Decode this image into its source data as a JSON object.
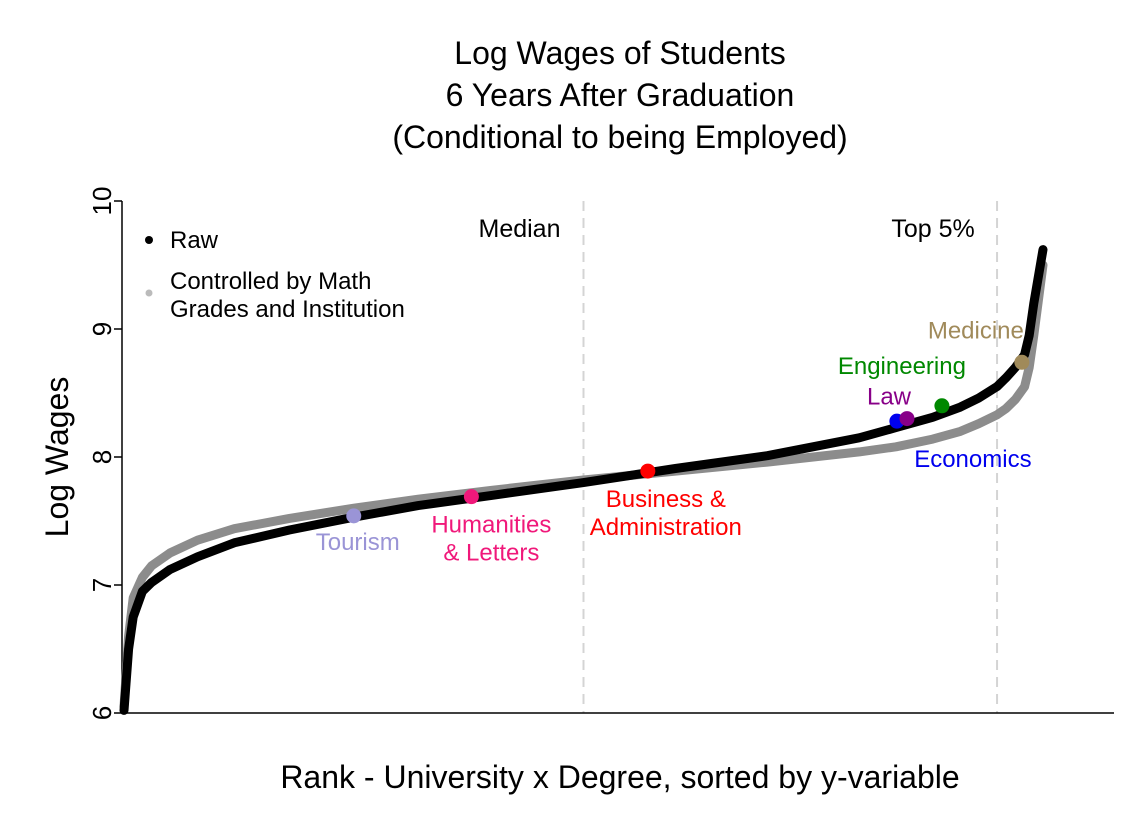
{
  "chart_data": {
    "type": "scatter",
    "title_lines": [
      "Log Wages of Students",
      "6 Years After Graduation",
      "(Conditional to being Employed)"
    ],
    "xlabel": "Rank - University x Degree, sorted by y-variable",
    "ylabel": "Log Wages",
    "ylim": [
      6,
      10
    ],
    "yticks": [
      "6",
      "7",
      "8",
      "9",
      "10"
    ],
    "xlim": [
      0,
      1
    ],
    "grid": false,
    "legend": {
      "placement": "top-left",
      "entries": [
        {
          "label_lines": [
            "Raw"
          ],
          "color": "#000000"
        },
        {
          "label_lines": [
            "Controlled by Math",
            "Grades and Institution"
          ],
          "color": "#bbbbbb"
        }
      ]
    },
    "reference_lines": [
      {
        "label": "Median",
        "x": 0.5
      },
      {
        "label": "Top 5%",
        "x": 0.95
      }
    ],
    "series": [
      {
        "color": "#000000",
        "x": [
          0.0,
          0.005,
          0.01,
          0.02,
          0.03,
          0.05,
          0.08,
          0.12,
          0.18,
          0.25,
          0.32,
          0.4,
          0.5,
          0.6,
          0.7,
          0.8,
          0.84,
          0.88,
          0.91,
          0.93,
          0.95,
          0.96,
          0.97,
          0.98,
          0.985,
          0.99,
          1.0
        ],
        "y": [
          6.02,
          6.5,
          6.75,
          6.95,
          7.02,
          7.12,
          7.22,
          7.33,
          7.43,
          7.53,
          7.62,
          7.7,
          7.8,
          7.91,
          8.01,
          8.15,
          8.23,
          8.31,
          8.39,
          8.46,
          8.55,
          8.62,
          8.7,
          8.8,
          8.95,
          9.2,
          9.62
        ]
      },
      {
        "color": "#8c8c8c",
        "x": [
          0.0,
          0.005,
          0.01,
          0.02,
          0.03,
          0.05,
          0.08,
          0.12,
          0.18,
          0.25,
          0.32,
          0.4,
          0.5,
          0.6,
          0.7,
          0.8,
          0.84,
          0.88,
          0.91,
          0.93,
          0.95,
          0.96,
          0.97,
          0.98,
          0.985,
          0.99,
          1.0
        ],
        "y": [
          6.05,
          6.6,
          6.9,
          7.06,
          7.15,
          7.25,
          7.35,
          7.44,
          7.52,
          7.6,
          7.67,
          7.74,
          7.82,
          7.89,
          7.96,
          8.04,
          8.08,
          8.14,
          8.2,
          8.26,
          8.33,
          8.38,
          8.45,
          8.55,
          8.7,
          8.95,
          9.5
        ]
      }
    ],
    "points": [
      {
        "label_lines": [
          "Tourism"
        ],
        "x": 0.25,
        "y": 7.54,
        "color": "#9a94d6"
      },
      {
        "label_lines": [
          "Humanities",
          "& Letters"
        ],
        "x": 0.378,
        "y": 7.69,
        "color": "#f0187a"
      },
      {
        "label_lines": [
          "Business &",
          "Administration"
        ],
        "x": 0.57,
        "y": 7.89,
        "color": "#ff0000"
      },
      {
        "label_lines": [
          "Economics"
        ],
        "x": 0.841,
        "y": 8.28,
        "color": "#0000ee"
      },
      {
        "label_lines": [
          "Law"
        ],
        "x": 0.852,
        "y": 8.3,
        "color": "#880088"
      },
      {
        "label_lines": [
          "Engineering"
        ],
        "x": 0.89,
        "y": 8.4,
        "color": "#008800"
      },
      {
        "label_lines": [
          "Medicine"
        ],
        "x": 0.977,
        "y": 8.74,
        "color": "#a08a5a"
      }
    ]
  }
}
